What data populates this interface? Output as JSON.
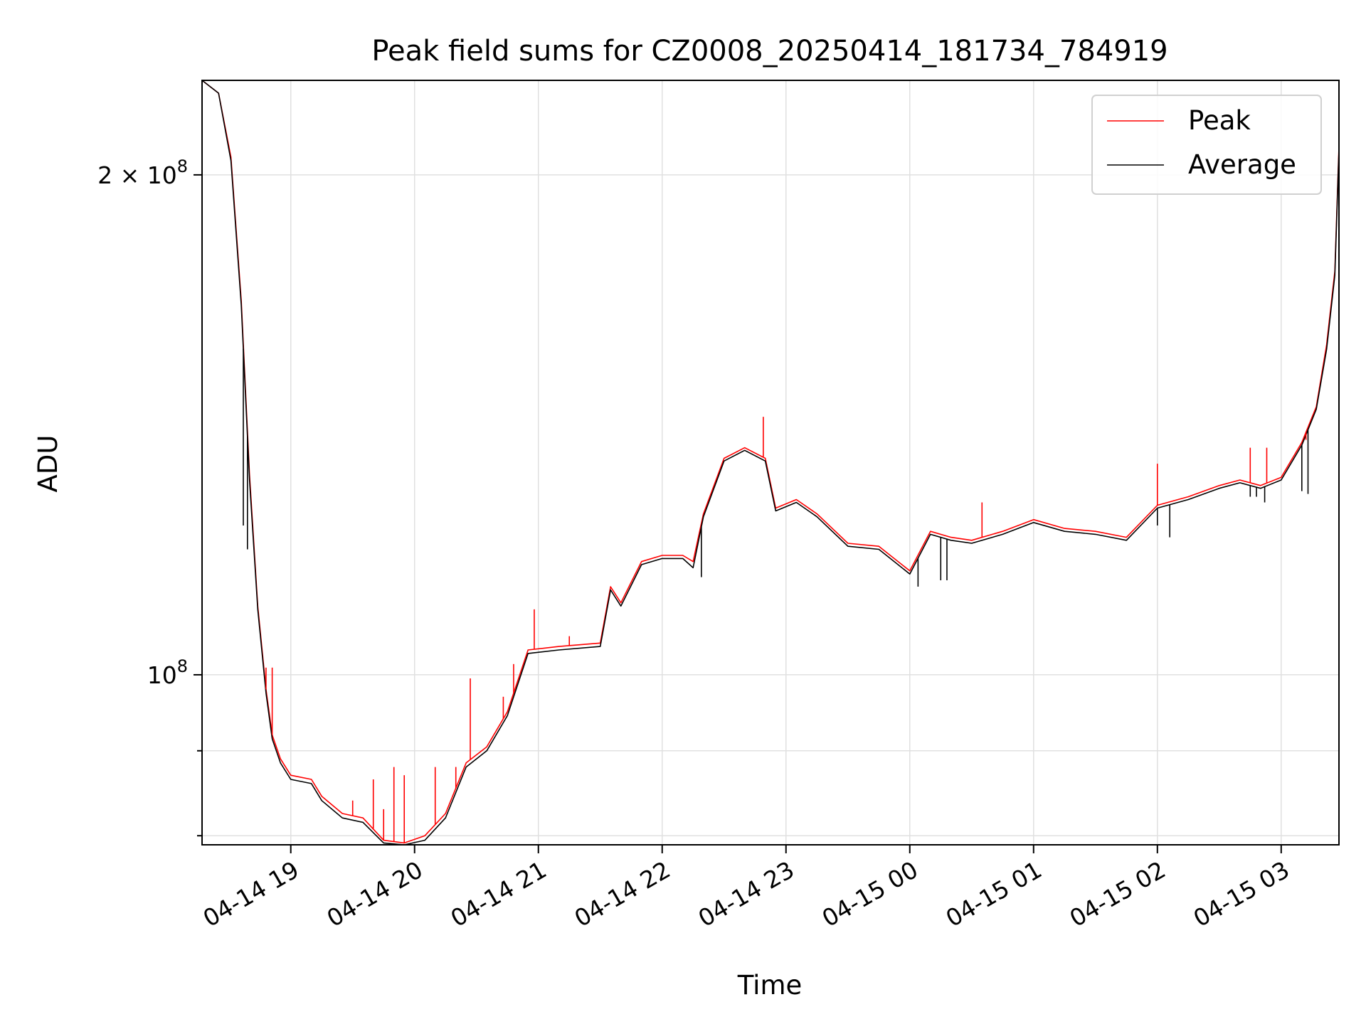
{
  "chart_data": {
    "type": "line",
    "title": "Peak field sums for CZ0008_20250414_181734_784919",
    "xlabel": "Time",
    "ylabel": "ADU",
    "x_range": [
      "2025-04-14T18:17",
      "2025-04-15T03:28"
    ],
    "ylim": [
      79000000,
      228000000
    ],
    "yscale": "log",
    "grid": true,
    "legend_position": "upper right",
    "x_tick_labels": [
      "04-14 19",
      "04-14 20",
      "04-14 21",
      "04-14 22",
      "04-14 23",
      "04-15 00",
      "04-15 01",
      "04-15 02",
      "04-15 03"
    ],
    "x_ticks": [
      "2025-04-14T19:00",
      "2025-04-14T20:00",
      "2025-04-14T21:00",
      "2025-04-14T22:00",
      "2025-04-14T23:00",
      "2025-04-15T00:00",
      "2025-04-15T01:00",
      "2025-04-15T02:00",
      "2025-04-15T03:00"
    ],
    "y_major_ticks": [
      {
        "value": 100000000,
        "base": "10",
        "exp": "8",
        "mult": ""
      },
      {
        "value": 200000000,
        "base": "10",
        "exp": "8",
        "mult": "2 × "
      }
    ],
    "y_minor_ticks": [
      80000000,
      90000000
    ],
    "series": [
      {
        "name": "Peak",
        "color": "#ff0000",
        "x": [
          "2025-04-14T18:17",
          "2025-04-14T18:25",
          "2025-04-14T18:31",
          "2025-04-14T18:36",
          "2025-04-14T18:40",
          "2025-04-14T18:44",
          "2025-04-14T18:48",
          "2025-04-14T18:51",
          "2025-04-14T18:55",
          "2025-04-14T19:00",
          "2025-04-14T19:10",
          "2025-04-14T19:15",
          "2025-04-14T19:25",
          "2025-04-14T19:35",
          "2025-04-14T19:45",
          "2025-04-14T19:55",
          "2025-04-14T20:05",
          "2025-04-14T20:15",
          "2025-04-14T20:25",
          "2025-04-14T20:35",
          "2025-04-14T20:45",
          "2025-04-14T20:55",
          "2025-04-14T21:10",
          "2025-04-14T21:30",
          "2025-04-14T21:35",
          "2025-04-14T21:40",
          "2025-04-14T21:50",
          "2025-04-14T22:00",
          "2025-04-14T22:10",
          "2025-04-14T22:15",
          "2025-04-14T22:20",
          "2025-04-14T22:30",
          "2025-04-14T22:40",
          "2025-04-14T22:50",
          "2025-04-14T22:55",
          "2025-04-14T23:05",
          "2025-04-14T23:15",
          "2025-04-14T23:30",
          "2025-04-14T23:45",
          "2025-04-15T00:00",
          "2025-04-15T00:10",
          "2025-04-15T00:20",
          "2025-04-15T00:30",
          "2025-04-15T00:45",
          "2025-04-15T01:00",
          "2025-04-15T01:15",
          "2025-04-15T01:30",
          "2025-04-15T01:45",
          "2025-04-15T02:00",
          "2025-04-15T02:15",
          "2025-04-15T02:30",
          "2025-04-15T02:40",
          "2025-04-15T02:50",
          "2025-04-15T03:00",
          "2025-04-15T03:10",
          "2025-04-15T03:17",
          "2025-04-15T03:22",
          "2025-04-15T03:26",
          "2025-04-15T03:28"
        ],
        "y": [
          228000000,
          224000000,
          205000000,
          168000000,
          132000000,
          110000000,
          98000000,
          92000000,
          89000000,
          87000000,
          86500000,
          84500000,
          82500000,
          82000000,
          79500000,
          79200000,
          80000000,
          82500000,
          88500000,
          90500000,
          95000000,
          103500000,
          104000000,
          104500000,
          113000000,
          110500000,
          117000000,
          118000000,
          118000000,
          117000000,
          125000000,
          135000000,
          137000000,
          135000000,
          126000000,
          127500000,
          125000000,
          120000000,
          119500000,
          115500000,
          122000000,
          121000000,
          120500000,
          122000000,
          124000000,
          122500000,
          122000000,
          121000000,
          126500000,
          128000000,
          130000000,
          131000000,
          130000000,
          131500000,
          138000000,
          145000000,
          158000000,
          175000000,
          208000000
        ]
      },
      {
        "name": "Average",
        "color": "#000000",
        "x": [
          "2025-04-14T18:17",
          "2025-04-14T18:25",
          "2025-04-14T18:31",
          "2025-04-14T18:36",
          "2025-04-14T18:40",
          "2025-04-14T18:44",
          "2025-04-14T18:48",
          "2025-04-14T18:51",
          "2025-04-14T18:55",
          "2025-04-14T19:00",
          "2025-04-14T19:10",
          "2025-04-14T19:15",
          "2025-04-14T19:25",
          "2025-04-14T19:35",
          "2025-04-14T19:45",
          "2025-04-14T19:55",
          "2025-04-14T20:05",
          "2025-04-14T20:15",
          "2025-04-14T20:25",
          "2025-04-14T20:35",
          "2025-04-14T20:45",
          "2025-04-14T20:55",
          "2025-04-14T21:10",
          "2025-04-14T21:30",
          "2025-04-14T21:35",
          "2025-04-14T21:40",
          "2025-04-14T21:50",
          "2025-04-14T22:00",
          "2025-04-14T22:10",
          "2025-04-14T22:15",
          "2025-04-14T22:20",
          "2025-04-14T22:30",
          "2025-04-14T22:40",
          "2025-04-14T22:50",
          "2025-04-14T22:55",
          "2025-04-14T23:05",
          "2025-04-14T23:15",
          "2025-04-14T23:30",
          "2025-04-14T23:45",
          "2025-04-15T00:00",
          "2025-04-15T00:10",
          "2025-04-15T00:20",
          "2025-04-15T00:30",
          "2025-04-15T00:45",
          "2025-04-15T01:00",
          "2025-04-15T01:15",
          "2025-04-15T01:30",
          "2025-04-15T01:45",
          "2025-04-15T02:00",
          "2025-04-15T02:15",
          "2025-04-15T02:30",
          "2025-04-15T02:40",
          "2025-04-15T02:50",
          "2025-04-15T03:00",
          "2025-04-15T03:10",
          "2025-04-15T03:17",
          "2025-04-15T03:22",
          "2025-04-15T03:26",
          "2025-04-15T03:28"
        ],
        "y": [
          228000000,
          224000000,
          204000000,
          167000000,
          131000000,
          109500000,
          97500000,
          91500000,
          88500000,
          86500000,
          86000000,
          84000000,
          82000000,
          81500000,
          79200000,
          79000000,
          79500000,
          82000000,
          88000000,
          90000000,
          94500000,
          103000000,
          103500000,
          104000000,
          112500000,
          110000000,
          116500000,
          117500000,
          117500000,
          116000000,
          124500000,
          134500000,
          136500000,
          134500000,
          125500000,
          127000000,
          124500000,
          119500000,
          119000000,
          115000000,
          121500000,
          120500000,
          120000000,
          121500000,
          123500000,
          122000000,
          121500000,
          120500000,
          126000000,
          127500000,
          129500000,
          130500000,
          129500000,
          131000000,
          137500000,
          144500000,
          157000000,
          174000000,
          207000000
        ]
      }
    ],
    "spikes": [
      {
        "x": "2025-04-14T18:48",
        "y": 101000000,
        "series": "Peak"
      },
      {
        "x": "2025-04-14T18:51",
        "y": 101000000,
        "series": "Peak"
      },
      {
        "x": "2025-04-14T19:10",
        "y": 86500000,
        "series": "Peak"
      },
      {
        "x": "2025-04-14T19:30",
        "y": 84000000,
        "series": "Peak"
      },
      {
        "x": "2025-04-14T19:40",
        "y": 86500000,
        "series": "Peak"
      },
      {
        "x": "2025-04-14T19:45",
        "y": 83000000,
        "series": "Peak"
      },
      {
        "x": "2025-04-14T19:50",
        "y": 88000000,
        "series": "Peak"
      },
      {
        "x": "2025-04-14T19:55",
        "y": 87000000,
        "series": "Peak"
      },
      {
        "x": "2025-04-14T20:10",
        "y": 88000000,
        "series": "Peak"
      },
      {
        "x": "2025-04-14T20:20",
        "y": 88000000,
        "series": "Peak"
      },
      {
        "x": "2025-04-14T20:27",
        "y": 99500000,
        "series": "Peak"
      },
      {
        "x": "2025-04-14T20:43",
        "y": 97000000,
        "series": "Peak"
      },
      {
        "x": "2025-04-14T20:48",
        "y": 101500000,
        "series": "Peak"
      },
      {
        "x": "2025-04-14T20:58",
        "y": 109500000,
        "series": "Peak"
      },
      {
        "x": "2025-04-14T21:15",
        "y": 105500000,
        "series": "Peak"
      },
      {
        "x": "2025-04-14T22:49",
        "y": 143000000,
        "series": "Peak"
      },
      {
        "x": "2025-04-15T00:35",
        "y": 127000000,
        "series": "Peak"
      },
      {
        "x": "2025-04-15T02:00",
        "y": 134000000,
        "series": "Peak"
      },
      {
        "x": "2025-04-15T02:45",
        "y": 137000000,
        "series": "Peak"
      },
      {
        "x": "2025-04-15T02:53",
        "y": 137000000,
        "series": "Peak"
      },
      {
        "x": "2025-04-15T03:12",
        "y": 138500000,
        "series": "Peak"
      },
      {
        "x": "2025-04-14T18:37",
        "y": 123000000,
        "series": "Average"
      },
      {
        "x": "2025-04-14T18:39",
        "y": 119000000,
        "series": "Average"
      },
      {
        "x": "2025-04-14T22:19",
        "y": 114500000,
        "series": "Average"
      },
      {
        "x": "2025-04-15T00:04",
        "y": 113000000,
        "series": "Average"
      },
      {
        "x": "2025-04-15T00:15",
        "y": 114000000,
        "series": "Average"
      },
      {
        "x": "2025-04-15T00:18",
        "y": 114000000,
        "series": "Average"
      },
      {
        "x": "2025-04-15T02:00",
        "y": 123000000,
        "series": "Average"
      },
      {
        "x": "2025-04-15T02:06",
        "y": 121000000,
        "series": "Average"
      },
      {
        "x": "2025-04-15T02:45",
        "y": 128000000,
        "series": "Average"
      },
      {
        "x": "2025-04-15T02:48",
        "y": 128000000,
        "series": "Average"
      },
      {
        "x": "2025-04-15T02:52",
        "y": 127000000,
        "series": "Average"
      },
      {
        "x": "2025-04-15T03:10",
        "y": 129000000,
        "series": "Average"
      },
      {
        "x": "2025-04-15T03:13",
        "y": 128500000,
        "series": "Average"
      }
    ]
  }
}
